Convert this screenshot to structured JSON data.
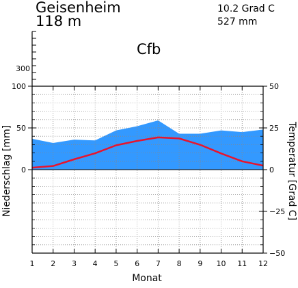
{
  "station": {
    "name": "Geisenheim",
    "elevation": "118  m",
    "mean_temp": "10.2  Grad C",
    "annual_precip": "527  mm",
    "climate_class": "Cfb"
  },
  "colors": {
    "precip_fill": "#3399ff",
    "temp_line": "#e8142d",
    "grid": "#888888",
    "axis": "#000000"
  },
  "chart_data": {
    "type": "area",
    "title": "Geisenheim",
    "xlabel": "Monat",
    "ylabel_left": "Niederschlag [mm]",
    "ylabel_right": "Temperatur  [Grad C]",
    "x": [
      1,
      2,
      3,
      4,
      5,
      6,
      7,
      8,
      9,
      10,
      11,
      12
    ],
    "x_ticks": [
      "1",
      "2",
      "3",
      "4",
      "5",
      "6",
      "7",
      "8",
      "9",
      "10",
      "11",
      "12"
    ],
    "precip_ylim": [
      0,
      100
    ],
    "precip_ticks": [
      "0",
      "50",
      "100"
    ],
    "precip_top_label": "300",
    "temp_ylim": [
      -50,
      50
    ],
    "temp_ticks": [
      "50",
      "25",
      "0",
      "−25",
      "−50"
    ],
    "grid": true,
    "series": [
      {
        "kind": "precipitation",
        "axis": "left",
        "unit": "mm",
        "values": [
          37,
          32,
          36,
          35,
          47,
          52,
          59,
          43,
          43,
          47,
          45,
          48
        ]
      },
      {
        "kind": "temperature",
        "axis": "right",
        "unit": "Grad C",
        "values": [
          1.2,
          2.2,
          6.2,
          9.8,
          14.6,
          17.2,
          19.3,
          18.7,
          14.9,
          9.7,
          5.0,
          2.4
        ]
      }
    ]
  }
}
